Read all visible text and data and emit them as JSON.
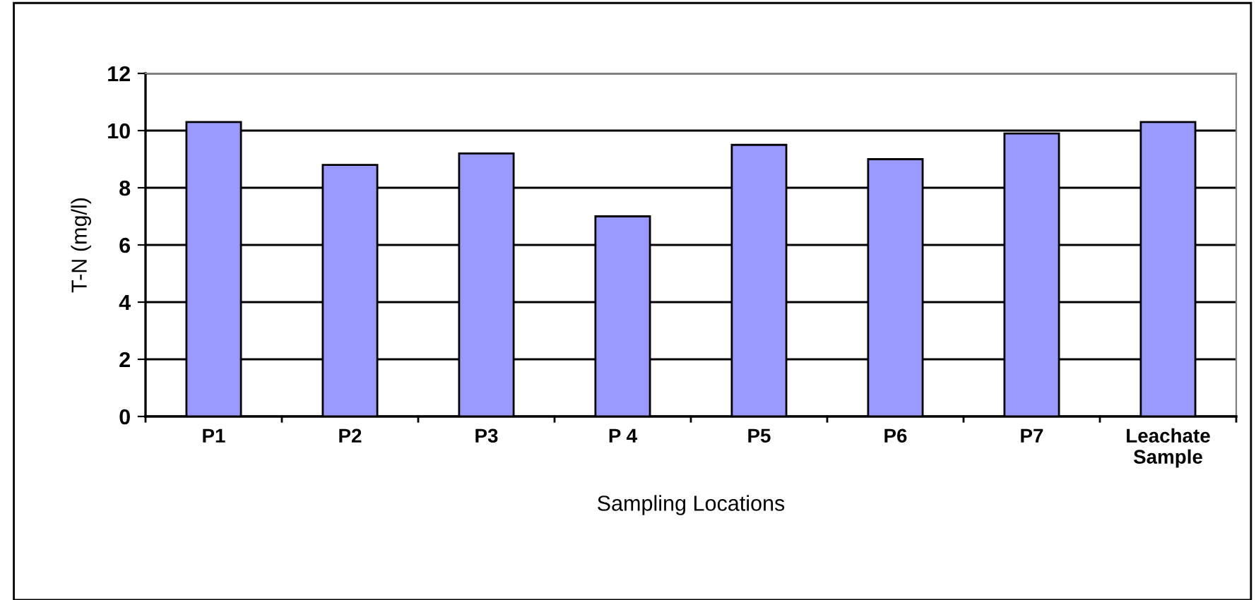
{
  "chart_data": {
    "type": "bar",
    "xlabel": "Sampling Locations",
    "ylabel": "T-N (mg/l)",
    "categories": [
      "P1",
      "P2",
      "P3",
      "P 4",
      "P5",
      "P6",
      "P7",
      "Leachate\nSample"
    ],
    "values": [
      10.3,
      8.8,
      9.2,
      7.0,
      9.5,
      9.0,
      9.9,
      10.3
    ],
    "color": "#9999ff",
    "ylim": [
      0,
      12
    ],
    "yticks": [
      0,
      2,
      4,
      6,
      8,
      10,
      12
    ],
    "grid": "y"
  }
}
